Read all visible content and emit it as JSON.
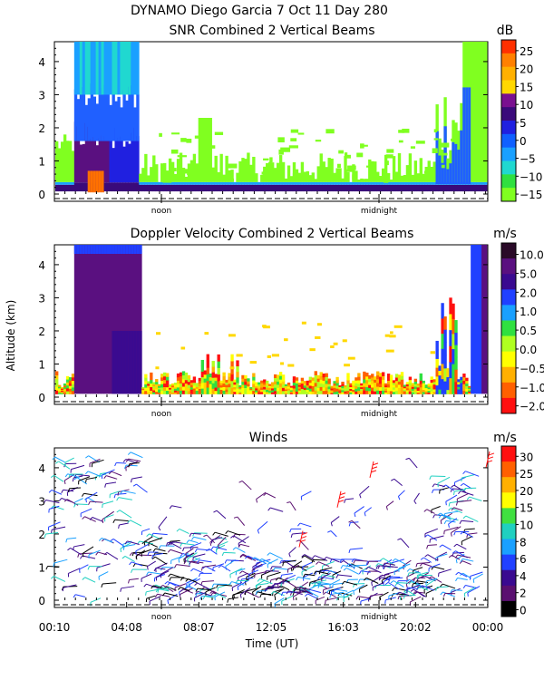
{
  "header": {
    "line1": "DYNAMO Diego Garcia   7 Oct 11 Day 280"
  },
  "chart_data": [
    {
      "type": "heatmap",
      "title": "SNR Combined 2 Vertical Beams",
      "unit": "dB",
      "y_ticks": [
        0,
        1,
        2,
        3,
        4
      ],
      "ylim": [
        0,
        4.6
      ],
      "colorbar_ticks": [
        "25",
        "20",
        "15",
        "10",
        "5",
        "0",
        "−5",
        "−10",
        "−15"
      ],
      "colorbar_colors": [
        "#ff3000",
        "#ff8000",
        "#ffb000",
        "#ffd800",
        "#7a1090",
        "#3a0a7a",
        "#2020e0",
        "#1060ff",
        "#1aa0ff",
        "#20d8d0",
        "#30e040",
        "#80ff20"
      ],
      "marks": [
        "noon",
        "midnight"
      ]
    },
    {
      "type": "heatmap",
      "title": "Doppler Velocity Combined 2 Vertical Beams",
      "unit": "m/s",
      "ylabel": "Altitude (km)",
      "y_ticks": [
        0,
        1,
        2,
        3,
        4
      ],
      "ylim": [
        0,
        4.6
      ],
      "colorbar_ticks": [
        "10.0",
        "5.0",
        "2.0",
        "1.0",
        "0.5",
        "0.0",
        "−0.5",
        "−1.0",
        "−2.0"
      ],
      "colorbar_colors": [
        "#2a0a28",
        "#5a1080",
        "#3a0a90",
        "#2040ff",
        "#1aa0ff",
        "#30e040",
        "#b0ff20",
        "#ffff00",
        "#ffb000",
        "#ff6000",
        "#ff1010"
      ],
      "marks": [
        "noon",
        "midnight"
      ]
    },
    {
      "type": "scatter",
      "title": "Winds",
      "unit": "m/s",
      "xlabel": "Time (UT)",
      "x_ticks": [
        "00:10",
        "04:08",
        "08:07",
        "12:05",
        "16:03",
        "20:02",
        "00:00"
      ],
      "y_ticks": [
        0,
        1,
        2,
        3,
        4
      ],
      "ylim": [
        0,
        4.6
      ],
      "colorbar_ticks": [
        "30",
        "25",
        "20",
        "15",
        "10",
        "8",
        "6",
        "4",
        "2",
        "0"
      ],
      "colorbar_colors": [
        "#ff1010",
        "#ff6000",
        "#ffb000",
        "#ffff00",
        "#40e040",
        "#20d0c0",
        "#1aa0ff",
        "#2040ff",
        "#3a0a90",
        "#5a1070",
        "#000000"
      ],
      "marks": [
        "noon",
        "midnight"
      ]
    }
  ]
}
